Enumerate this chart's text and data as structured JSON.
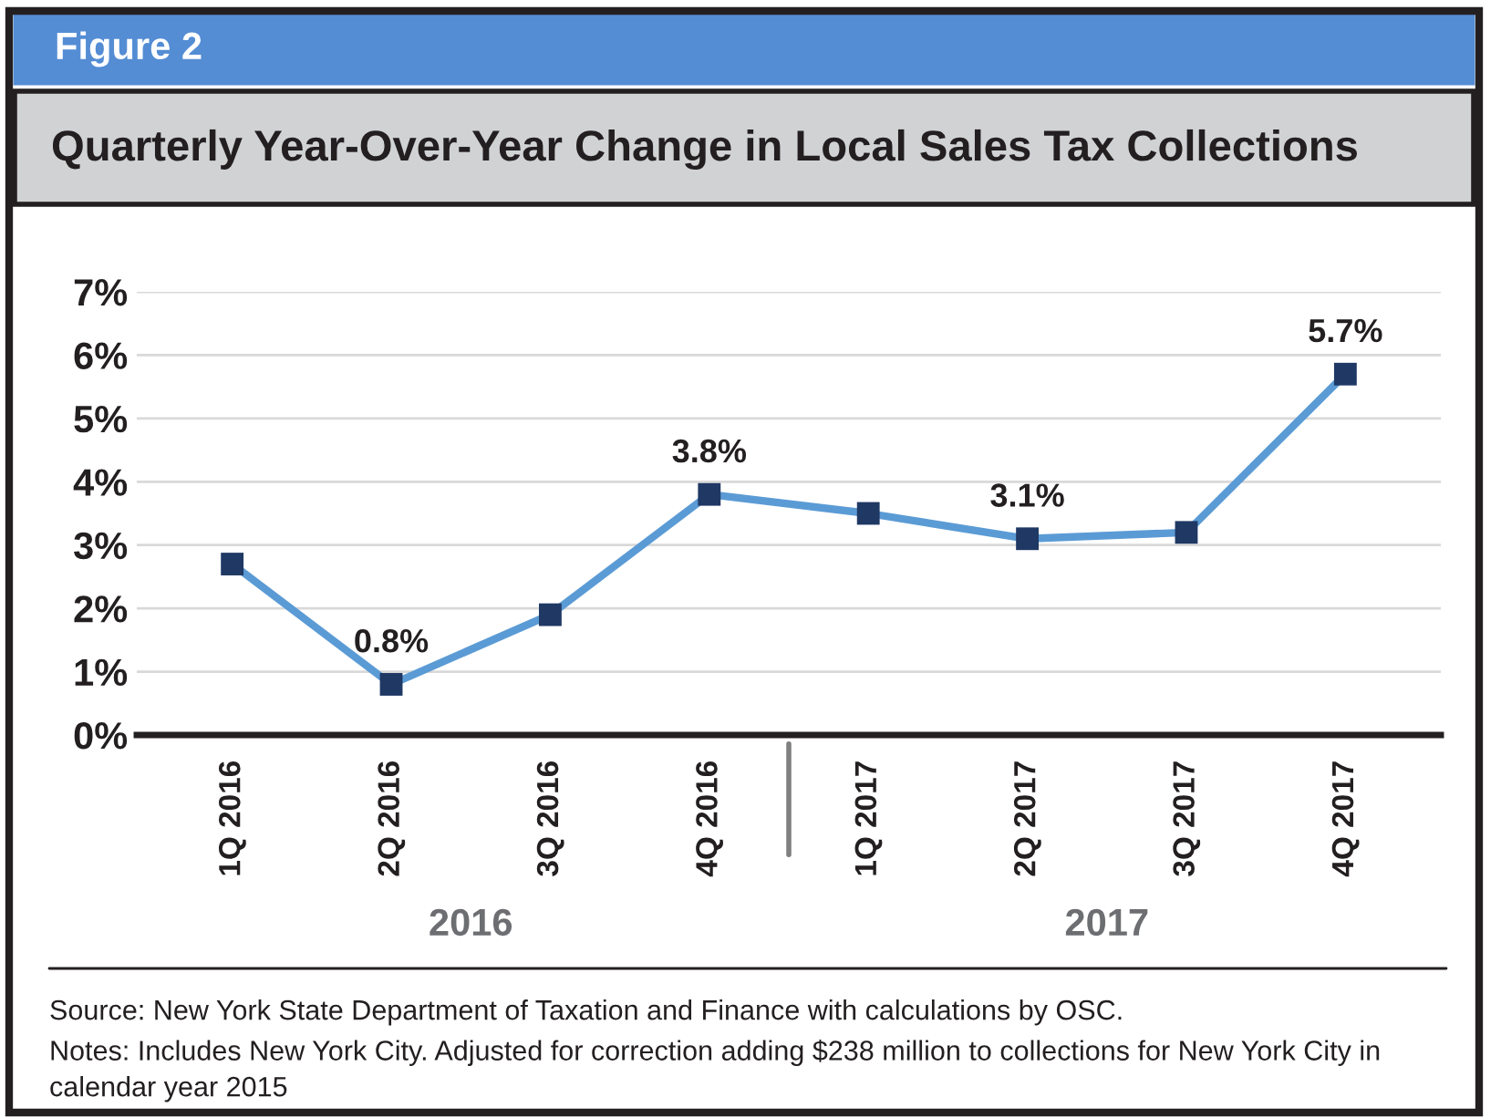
{
  "chart_data": {
    "type": "line",
    "subtitle": "Figure 2",
    "title": "Quarterly Year-Over-Year Change in Local Sales Tax Collections",
    "categories": [
      "1Q 2016",
      "2Q 2016",
      "3Q 2016",
      "4Q 2016",
      "1Q 2017",
      "2Q 2017",
      "3Q 2017",
      "4Q 2017"
    ],
    "series": [
      {
        "color": "#5b9bd5",
        "values": [
          2.7,
          0.8,
          1.9,
          3.8,
          3.5,
          3.1,
          3.2,
          5.7
        ],
        "value_labels": [
          null,
          "0.8%",
          null,
          "3.8%",
          null,
          "3.1%",
          null,
          "5.7%"
        ]
      }
    ],
    "ylim": [
      0,
      7
    ],
    "yticks": [
      {
        "value": 0,
        "label": "0%"
      },
      {
        "value": 1,
        "label": "1%"
      },
      {
        "value": 2,
        "label": "2%"
      },
      {
        "value": 3,
        "label": "3%"
      },
      {
        "value": 4,
        "label": "4%"
      },
      {
        "value": 5,
        "label": "5%"
      },
      {
        "value": 6,
        "label": "6%"
      },
      {
        "value": 7,
        "label": "7%"
      }
    ],
    "grid": "y",
    "marker": "square",
    "line_style": "solid",
    "annotations": [
      "2016",
      "2017",
      "Source: New York State Department of Taxation and Finance with calculations by OSC.",
      "Notes: Includes New York City. Adjusted for correction adding $238 million to collections for New York City in calendar year 2015"
    ]
  }
}
